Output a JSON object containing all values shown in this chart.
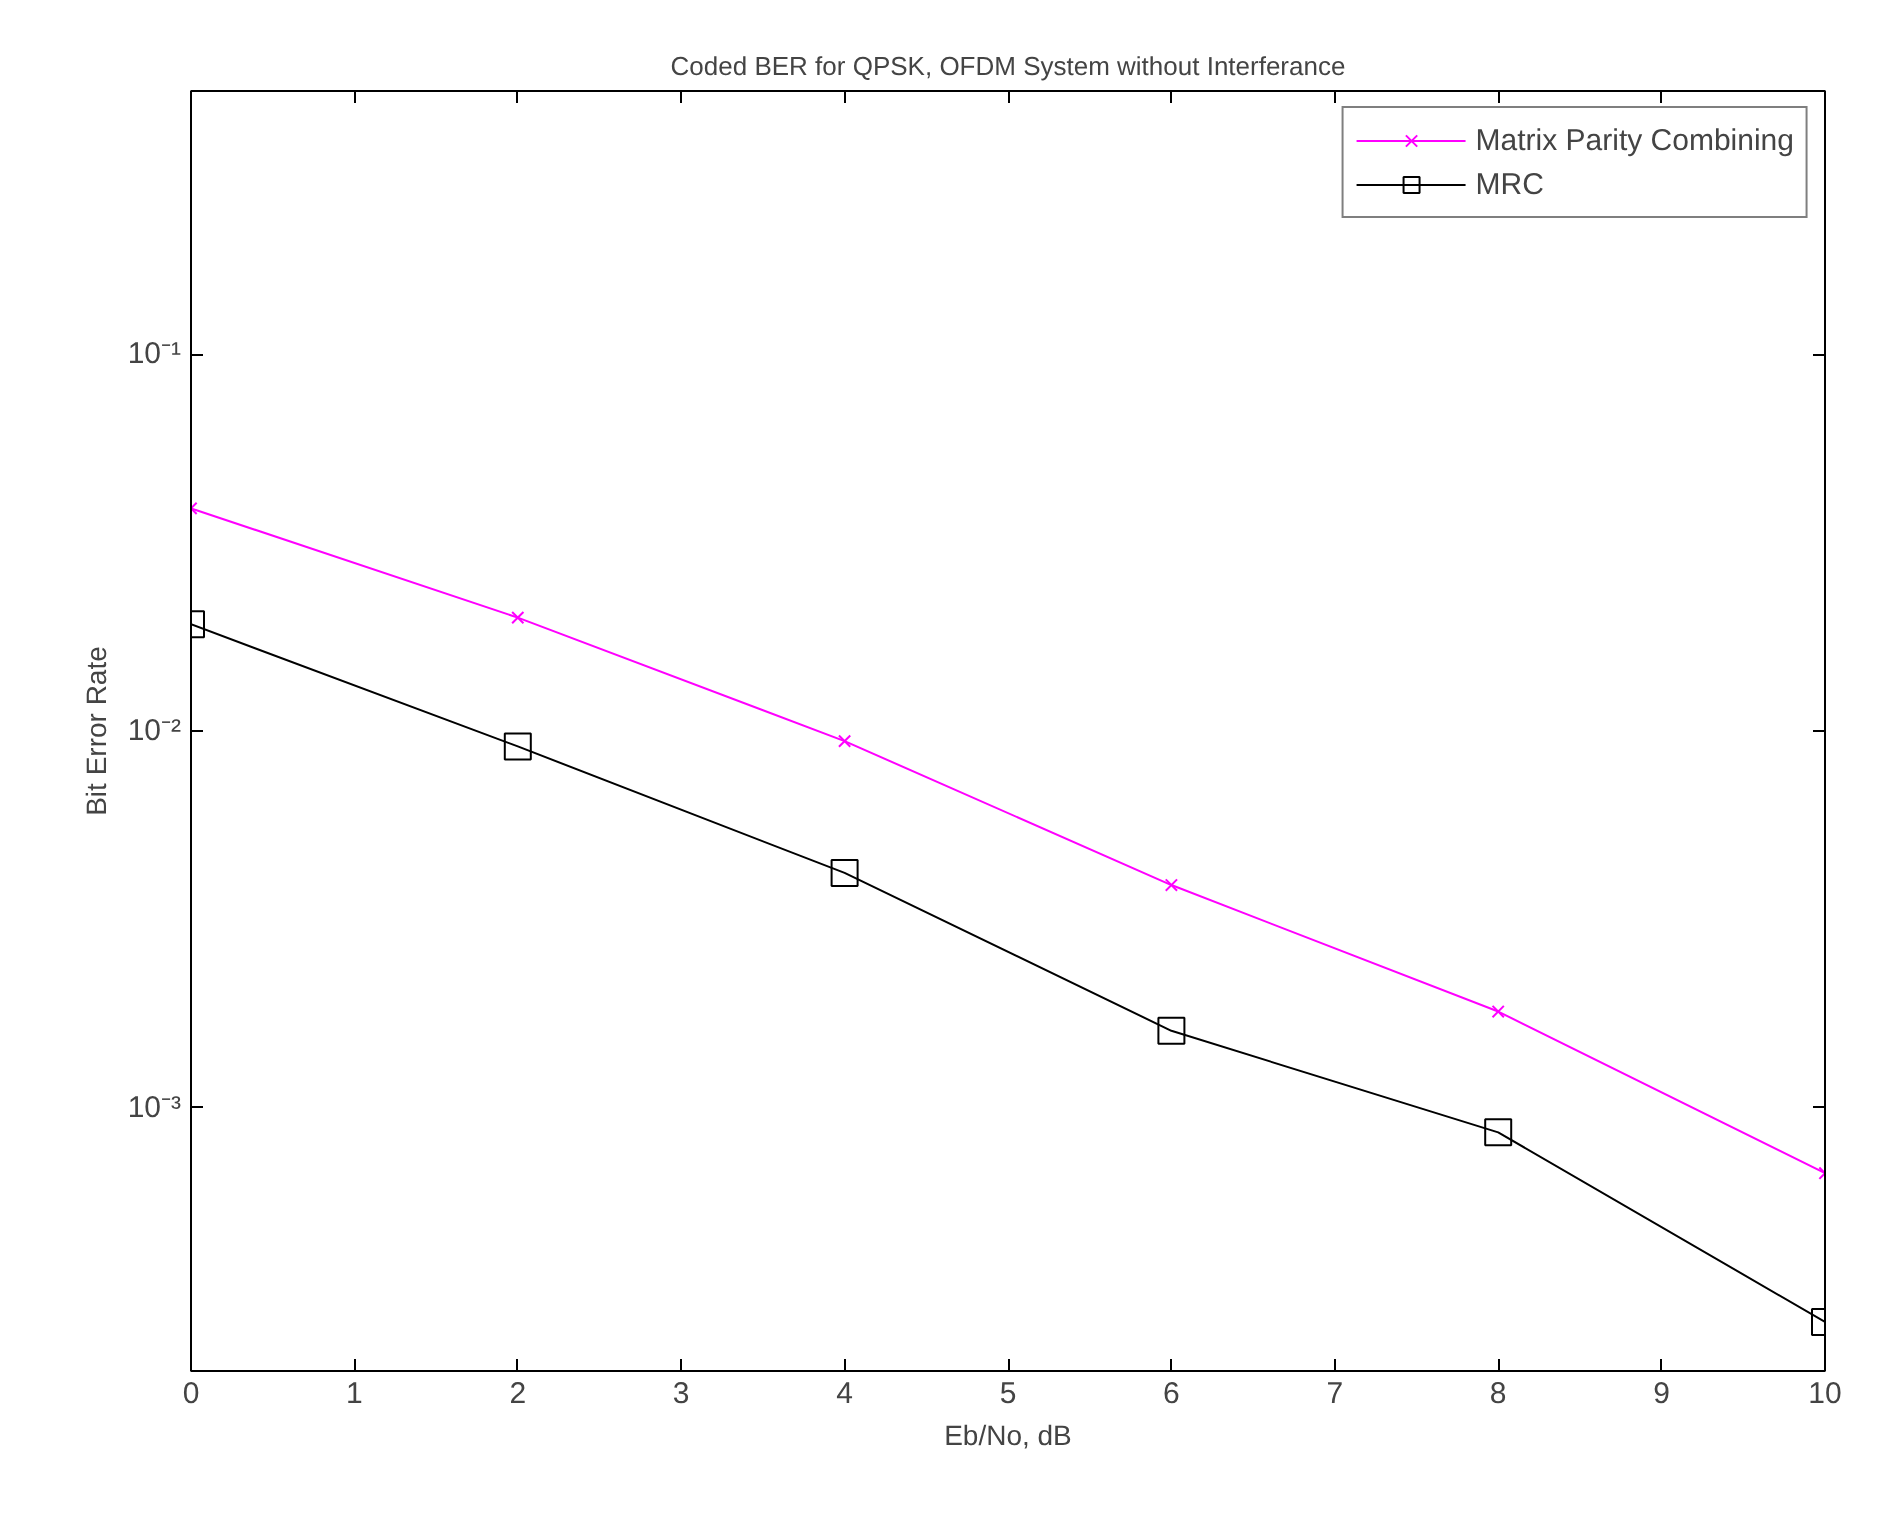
{
  "chart_data": {
    "type": "line",
    "title": "Coded BER for QPSK, OFDM System without Interferance",
    "xlabel": "Eb/No, dB",
    "ylabel": "Bit Error Rate",
    "x": [
      0,
      2,
      4,
      6,
      8,
      10
    ],
    "series": [
      {
        "name": "Matrix Parity Combining",
        "color": "#ff00ff",
        "marker": "cross",
        "values": [
          0.039,
          0.02,
          0.0094,
          0.0039,
          0.0018,
          0.00067
        ]
      },
      {
        "name": "MRC",
        "color": "#000000",
        "marker": "square",
        "values": [
          0.0192,
          0.0091,
          0.0042,
          0.0016,
          0.00086,
          0.00027
        ]
      }
    ],
    "log": "y",
    "xlim": [
      0,
      10
    ],
    "ylim": [
      0.0002,
      0.5
    ],
    "xticks": [
      0,
      1,
      2,
      3,
      4,
      5,
      6,
      7,
      8,
      9,
      10
    ],
    "yticks": [
      {
        "value": 0.001,
        "label": "10⁻³"
      },
      {
        "value": 0.01,
        "label": "10⁻²"
      },
      {
        "value": 0.1,
        "label": "10⁻¹"
      }
    ],
    "grid": false,
    "legend": "top right",
    "line_style": "solid"
  }
}
